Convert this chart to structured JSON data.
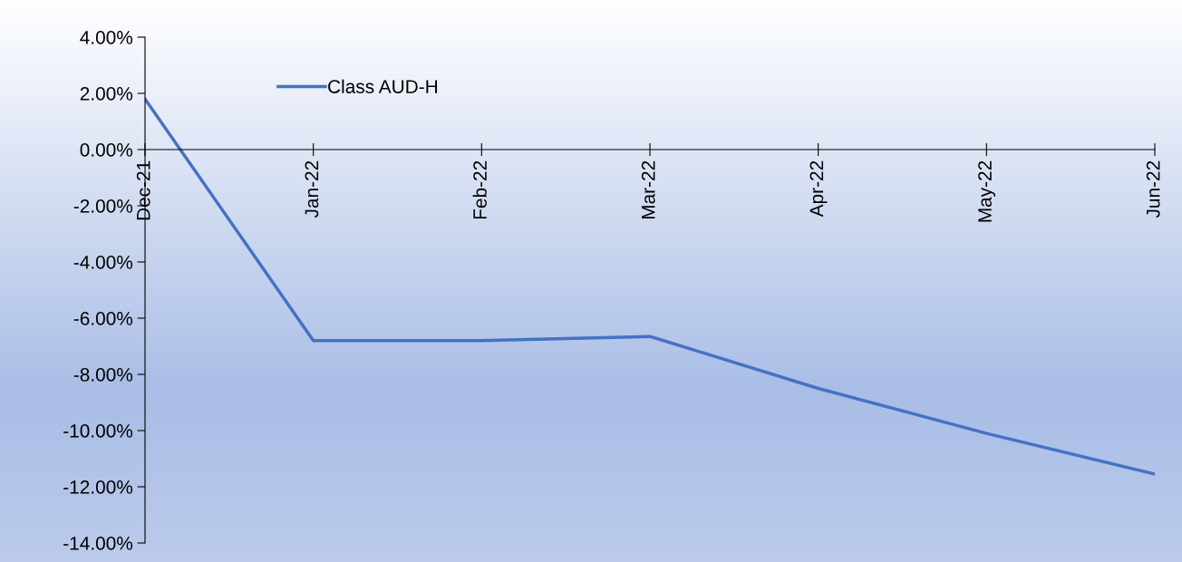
{
  "chart_data": {
    "type": "line",
    "categories": [
      "Dec-21",
      "Jan-22",
      "Feb-22",
      "Mar-22",
      "Apr-22",
      "May-22",
      "Jun-22"
    ],
    "series": [
      {
        "name": "Class AUD-H",
        "color": "#4472c4",
        "values": [
          1.8,
          -6.8,
          -6.8,
          -6.65,
          -8.5,
          -10.1,
          -11.55
        ]
      }
    ],
    "ylim": [
      -14,
      4
    ],
    "yticks": [
      {
        "value": -14,
        "label": "-14.00%"
      },
      {
        "value": -12,
        "label": "-12.00%"
      },
      {
        "value": -10,
        "label": "-10.00%"
      },
      {
        "value": -8,
        "label": "-8.00%"
      },
      {
        "value": -6,
        "label": "-6.00%"
      },
      {
        "value": -4,
        "label": "-4.00%"
      },
      {
        "value": -2,
        "label": "-2.00%"
      },
      {
        "value": 0,
        "label": "0.00%"
      },
      {
        "value": 2,
        "label": "2.00%"
      },
      {
        "value": 4,
        "label": "4.00%"
      }
    ],
    "legend": "top left",
    "grid": false,
    "marker": "none",
    "line_style": "solid"
  }
}
